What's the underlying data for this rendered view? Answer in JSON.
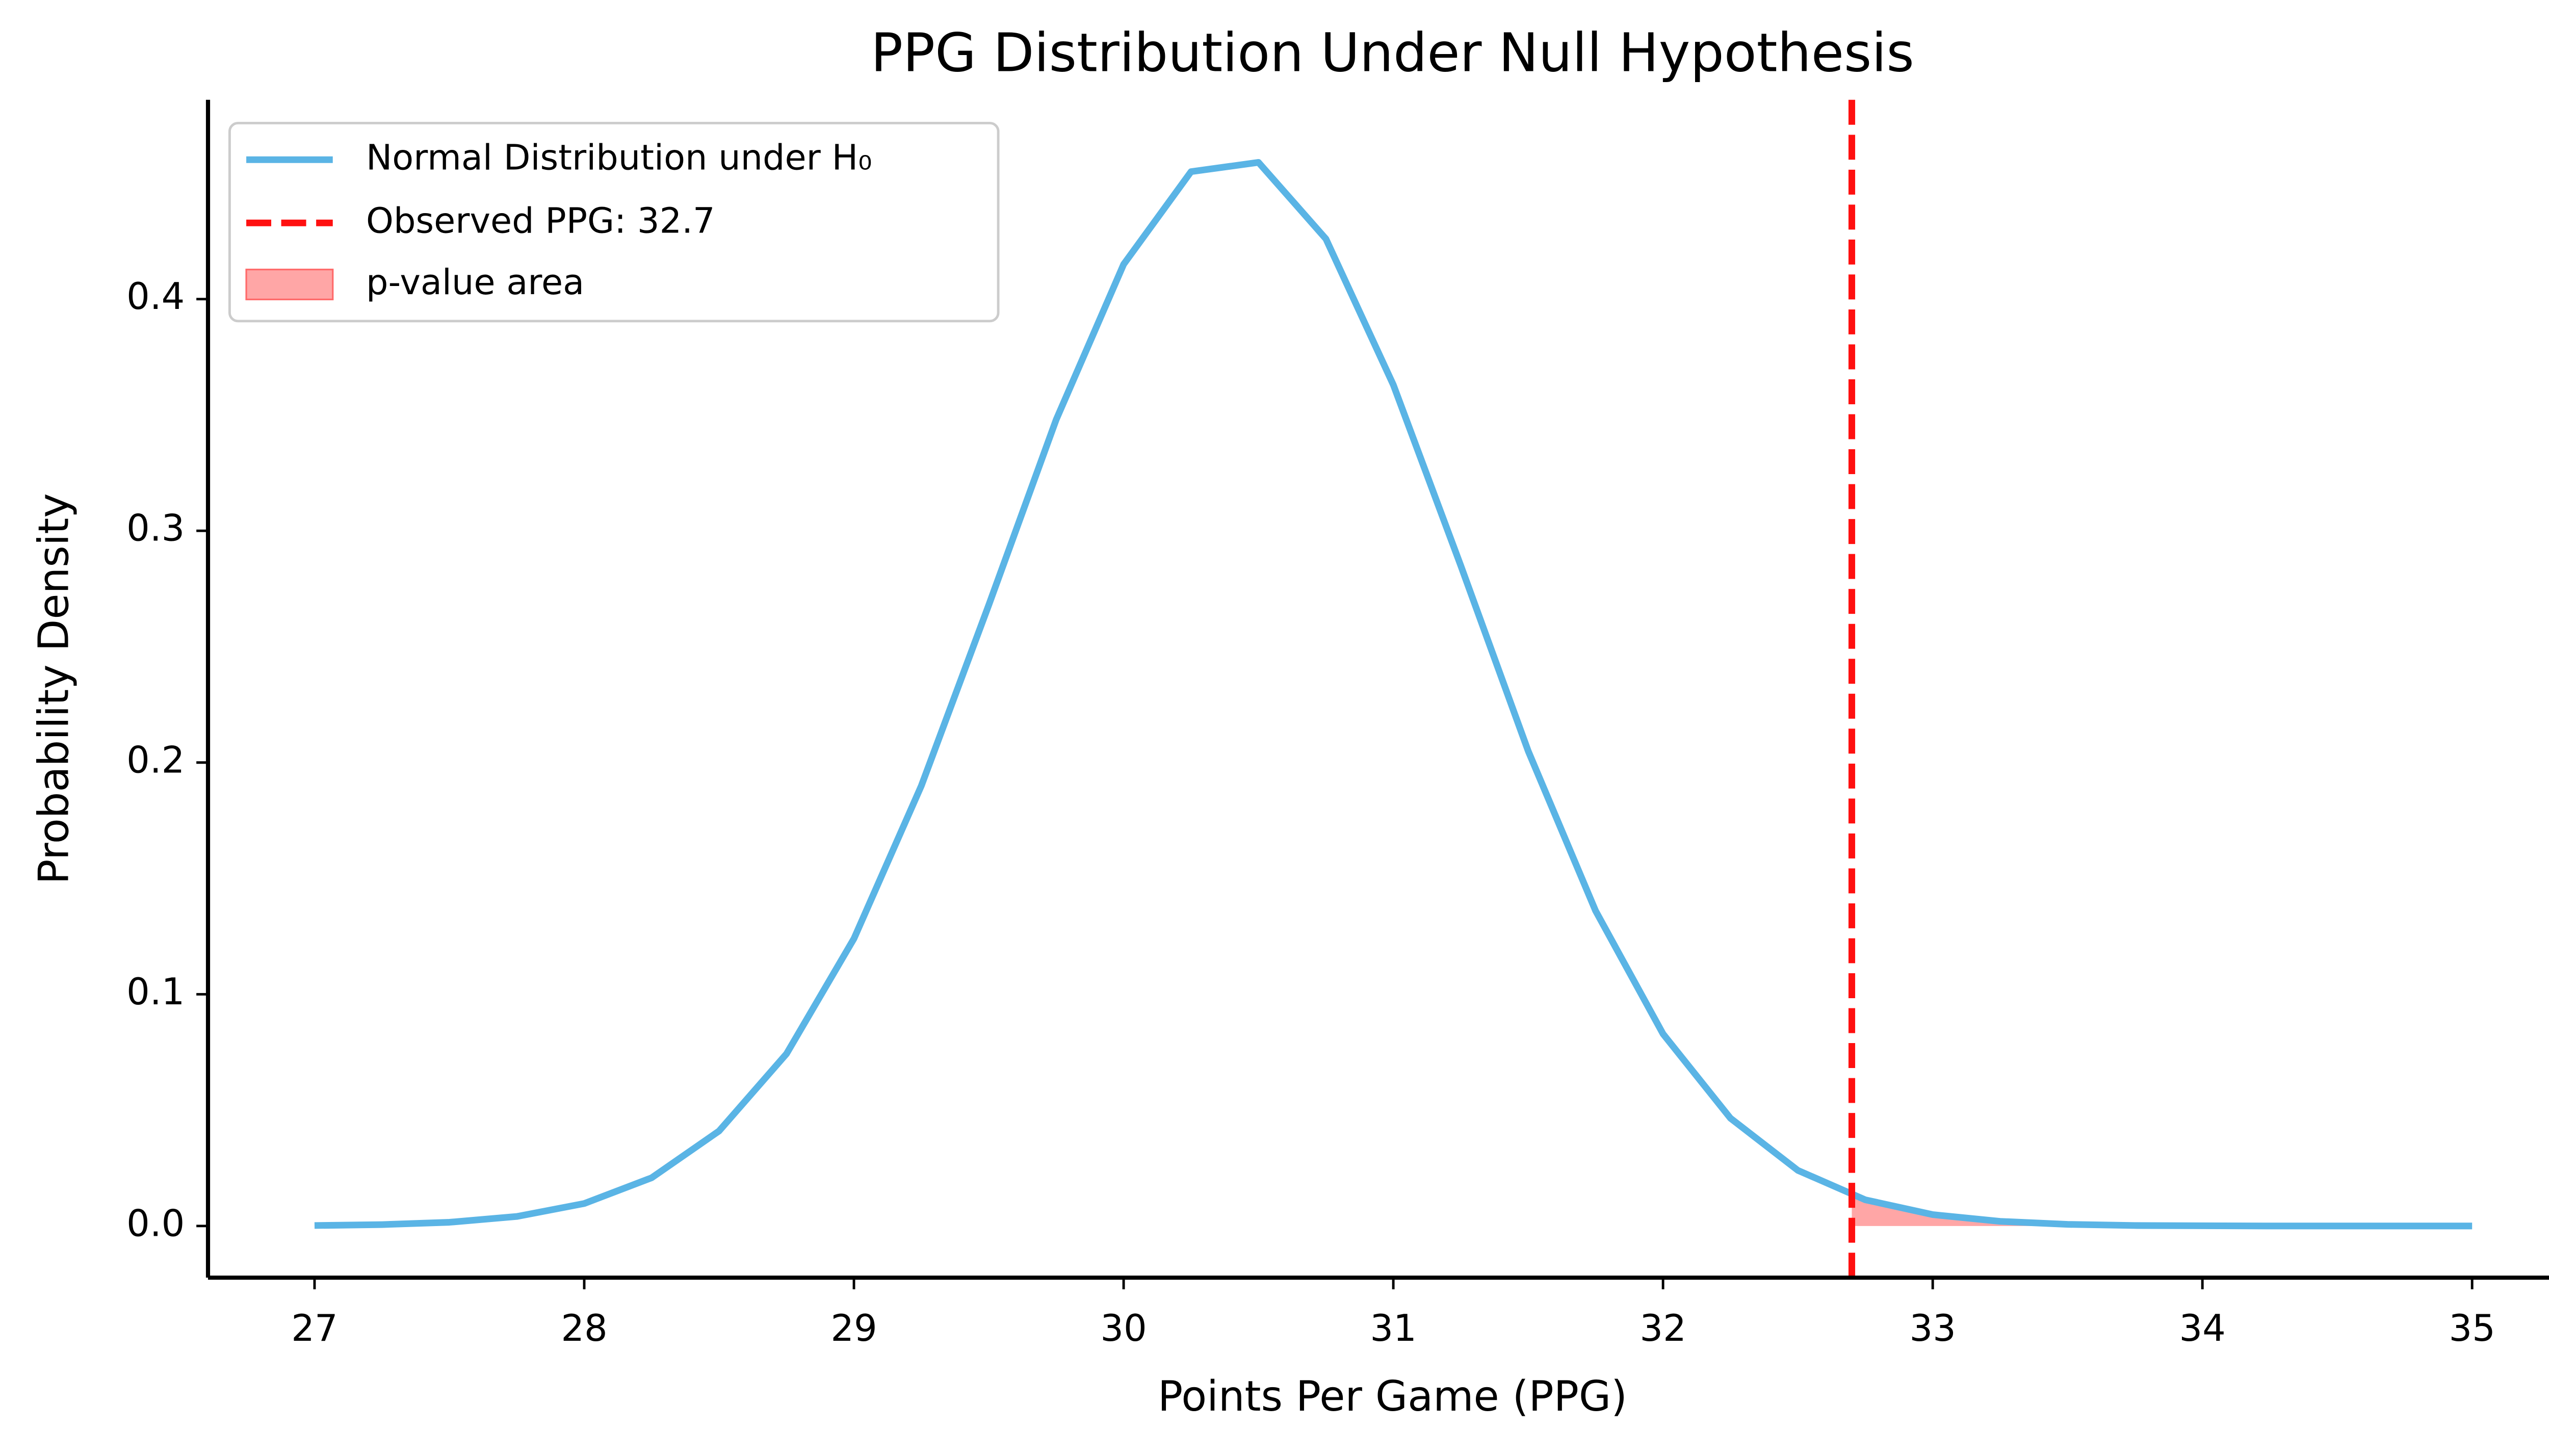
{
  "chart_data": {
    "type": "line",
    "title": "PPG Distribution Under Null Hypothesis",
    "xlabel": "Points Per Game (PPG)",
    "ylabel": "Probability Density",
    "x": [
      27,
      27.25,
      27.5,
      27.75,
      28,
      28.25,
      28.5,
      28.75,
      29,
      29.25,
      29.5,
      29.75,
      30,
      30.25,
      30.5,
      30.75,
      31,
      31.25,
      31.5,
      31.75,
      32,
      32.25,
      32.5,
      32.75,
      33,
      33.25,
      33.5,
      33.75,
      34,
      34.25,
      34.5,
      34.75,
      35
    ],
    "series": [
      {
        "name": "Normal Distribution under H₀",
        "color": "#5ab4e5",
        "values": [
          0.0002,
          0.0006,
          0.0016,
          0.0041,
          0.0097,
          0.0208,
          0.041,
          0.0743,
          0.124,
          0.19,
          0.268,
          0.348,
          0.415,
          0.455,
          0.459,
          0.426,
          0.363,
          0.285,
          0.205,
          0.136,
          0.0829,
          0.0465,
          0.024,
          0.0113,
          0.0049,
          0.002,
          0.0007,
          0.0002,
          0.0001,
          0,
          0,
          0,
          0
        ]
      }
    ],
    "observed": {
      "value": 32.7,
      "name": "Observed PPG: 32.7",
      "color": "#ff1010"
    },
    "area": {
      "name": "p-value area",
      "color": "#ff6b6b"
    },
    "legend": "upper left",
    "xlim": [
      26.605,
      35.395
    ],
    "ylim": [
      -0.0223,
      0.486
    ],
    "xticks": [
      27,
      28,
      29,
      30,
      31,
      32,
      33,
      34,
      35
    ],
    "yticks": [
      {
        "value": 0,
        "label": "0.0"
      },
      0.1,
      0.2,
      0.3,
      0.4
    ]
  }
}
